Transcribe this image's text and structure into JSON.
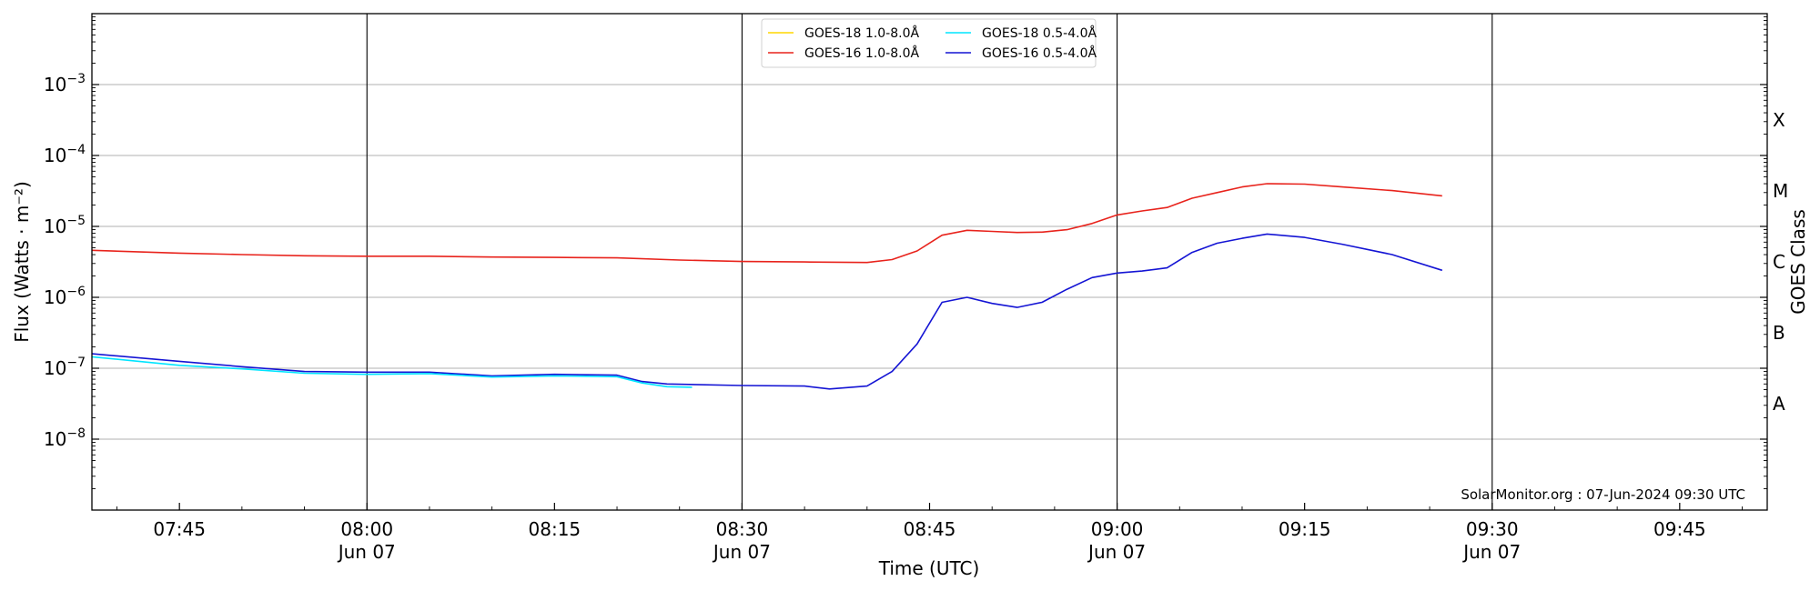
{
  "chart_data": {
    "type": "line",
    "xlabel": "Time (UTC)",
    "ylabel": "Flux (Watts · m⁻²)",
    "y2label": "GOES Class",
    "y_scale": "log",
    "ylim": [
      1e-09,
      0.01
    ],
    "xlim": [
      "07:38",
      "09:52"
    ],
    "grid": "horizontal at decades; vertical lines at half-hours",
    "x_ticks": [
      {
        "time": "07:45",
        "label": "07:45",
        "date": ""
      },
      {
        "time": "08:00",
        "label": "08:00",
        "date": "Jun 07"
      },
      {
        "time": "08:15",
        "label": "08:15",
        "date": ""
      },
      {
        "time": "08:30",
        "label": "08:30",
        "date": "Jun 07"
      },
      {
        "time": "08:45",
        "label": "08:45",
        "date": ""
      },
      {
        "time": "09:00",
        "label": "09:00",
        "date": "Jun 07"
      },
      {
        "time": "09:15",
        "label": "09:15",
        "date": ""
      },
      {
        "time": "09:30",
        "label": "09:30",
        "date": "Jun 07"
      },
      {
        "time": "09:45",
        "label": "09:45",
        "date": ""
      }
    ],
    "vlines": [
      "08:00",
      "08:30",
      "09:00",
      "09:30"
    ],
    "y_ticks": [
      {
        "value": 1e-08,
        "base": "10",
        "exp": "−8"
      },
      {
        "value": 1e-07,
        "base": "10",
        "exp": "−7"
      },
      {
        "value": 1e-06,
        "base": "10",
        "exp": "−6"
      },
      {
        "value": 1e-05,
        "base": "10",
        "exp": "−5"
      },
      {
        "value": 0.0001,
        "base": "10",
        "exp": "−4"
      },
      {
        "value": 0.001,
        "base": "10",
        "exp": "−3"
      }
    ],
    "goes_classes": [
      {
        "label": "A",
        "value": 3.16e-08
      },
      {
        "label": "B",
        "value": 3.16e-07
      },
      {
        "label": "C",
        "value": 3.16e-06
      },
      {
        "label": "M",
        "value": 3.16e-05
      },
      {
        "label": "X",
        "value": 0.000316
      }
    ],
    "legend": {
      "placement": "top-center",
      "entries": [
        {
          "label": "GOES-18 1.0-8.0Å",
          "color": "#FFD700"
        },
        {
          "label": "GOES-18 0.5-4.0Å",
          "color": "#00E5FF"
        },
        {
          "label": "GOES-16 1.0-8.0Å",
          "color": "#E8231C"
        },
        {
          "label": "GOES-16 0.5-4.0Å",
          "color": "#1414D4"
        }
      ]
    },
    "series": [
      {
        "name": "GOES-16 1.0-8.0Å",
        "color": "#E8231C",
        "x": [
          "07:38",
          "07:45",
          "07:50",
          "07:55",
          "08:00",
          "08:05",
          "08:10",
          "08:15",
          "08:20",
          "08:25",
          "08:30",
          "08:35",
          "08:40",
          "08:42",
          "08:44",
          "08:46",
          "08:48",
          "08:50",
          "08:52",
          "08:54",
          "08:56",
          "08:58",
          "09:00",
          "09:02",
          "09:04",
          "09:06",
          "09:08",
          "09:10",
          "09:12",
          "09:15",
          "09:18",
          "09:22",
          "09:26"
        ],
        "values": [
          4.6e-06,
          4.2e-06,
          4e-06,
          3.85e-06,
          3.8e-06,
          3.8e-06,
          3.7e-06,
          3.65e-06,
          3.6e-06,
          3.35e-06,
          3.2e-06,
          3.15e-06,
          3.1e-06,
          3.4e-06,
          4.5e-06,
          7.5e-06,
          8.8e-06,
          8.5e-06,
          8.2e-06,
          8.3e-06,
          9e-06,
          1.1e-05,
          1.45e-05,
          1.65e-05,
          1.85e-05,
          2.5e-05,
          3e-05,
          3.6e-05,
          4e-05,
          3.95e-05,
          3.6e-05,
          3.2e-05,
          2.7e-05
        ]
      },
      {
        "name": "GOES-16 0.5-4.0Å",
        "color": "#1414D4",
        "x": [
          "07:38",
          "07:45",
          "07:50",
          "07:55",
          "08:00",
          "08:05",
          "08:10",
          "08:15",
          "08:20",
          "08:22",
          "08:24",
          "08:30",
          "08:35",
          "08:37",
          "08:40",
          "08:42",
          "08:44",
          "08:46",
          "08:48",
          "08:50",
          "08:52",
          "08:54",
          "08:56",
          "08:58",
          "09:00",
          "09:02",
          "09:04",
          "09:06",
          "09:08",
          "09:10",
          "09:12",
          "09:15",
          "09:18",
          "09:22",
          "09:26"
        ],
        "values": [
          1.6e-07,
          1.25e-07,
          1.05e-07,
          9e-08,
          8.8e-08,
          8.8e-08,
          7.8e-08,
          8.2e-08,
          8e-08,
          6.5e-08,
          6e-08,
          5.7e-08,
          5.6e-08,
          5.1e-08,
          5.6e-08,
          9e-08,
          2.2e-07,
          8.5e-07,
          1e-06,
          8.2e-07,
          7.2e-07,
          8.5e-07,
          1.3e-06,
          1.9e-06,
          2.2e-06,
          2.35e-06,
          2.6e-06,
          4.3e-06,
          5.8e-06,
          6.8e-06,
          7.8e-06,
          7e-06,
          5.6e-06,
          4e-06,
          2.4e-06
        ]
      },
      {
        "name": "GOES-18 0.5-4.0Å",
        "color": "#00E5FF",
        "x": [
          "07:38",
          "07:45",
          "07:50",
          "07:55",
          "08:00",
          "08:05",
          "08:10",
          "08:15",
          "08:20",
          "08:22",
          "08:24",
          "08:26"
        ],
        "values": [
          1.45e-07,
          1.1e-07,
          9.8e-08,
          8.5e-08,
          8.2e-08,
          8.4e-08,
          7.5e-08,
          7.8e-08,
          7.6e-08,
          6.2e-08,
          5.5e-08,
          5.4e-08
        ]
      }
    ],
    "annotation": "SolarMonitor.org : 07-Jun-2024 09:30 UTC"
  }
}
